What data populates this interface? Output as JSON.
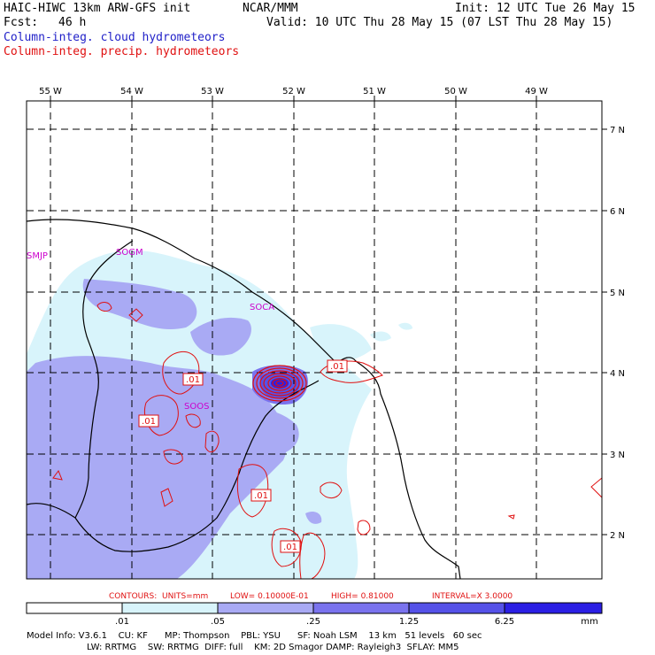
{
  "header": {
    "model": "HAIC-HIWC 13km ARW-GFS init",
    "org": "NCAR/MMM",
    "init": "Init: 12 UTC Tue 26 May 15",
    "fcst_label": "Fcst:",
    "fcst_value": "46 h",
    "valid": "Valid: 10 UTC Thu 28 May 15 (07 LST Thu 28 May 15)",
    "field_cloud": "Column-integ. cloud hydrometeors",
    "field_precip": "Column-integ. precip. hydrometeors"
  },
  "colors": {
    "cloud_text": "#1f1fc8",
    "precip_text": "#e01010",
    "station_text": "#cc00cc",
    "shade_1": "#d8f4fb",
    "shade_2": "#a9aaf4",
    "shade_3": "#7a73ee",
    "shade_4": "#5552e8",
    "shade_5": "#2b1fe4"
  },
  "axes": {
    "lon_labels": [
      "55 W",
      "54 W",
      "53 W",
      "52 W",
      "51 W",
      "50 W",
      "49 W"
    ],
    "lat_labels": [
      "7 N",
      "6 N",
      "5 N",
      "4 N",
      "3 N",
      "2 N"
    ]
  },
  "stations": [
    "SMJP",
    "SOGM",
    "SOCA",
    "SOOS"
  ],
  "contour_labels": [
    ".01",
    ".01",
    ".01",
    ".01",
    ".01"
  ],
  "contours_info": {
    "prefix": "CONTOURS:",
    "units": "UNITS=mm",
    "low": "LOW= 0.10000E-01",
    "high": "HIGH= 0.81000",
    "interval": "INTERVAL=X  3.0000"
  },
  "colorbar": {
    "ticks": [
      ".01",
      ".05",
      ".25",
      "1.25",
      "6.25"
    ],
    "unit": "mm"
  },
  "model_info": {
    "line1": "Model Info: V3.6.1    CU: KF      MP: Thompson    PBL: YSU      SF: Noah LSM    13 km   51 levels   60 sec",
    "line2": "LW: RRTMG    SW: RRTMG  DIFF: full    KM: 2D Smagor DAMP: Rayleigh3  SFLAY: MM5"
  }
}
